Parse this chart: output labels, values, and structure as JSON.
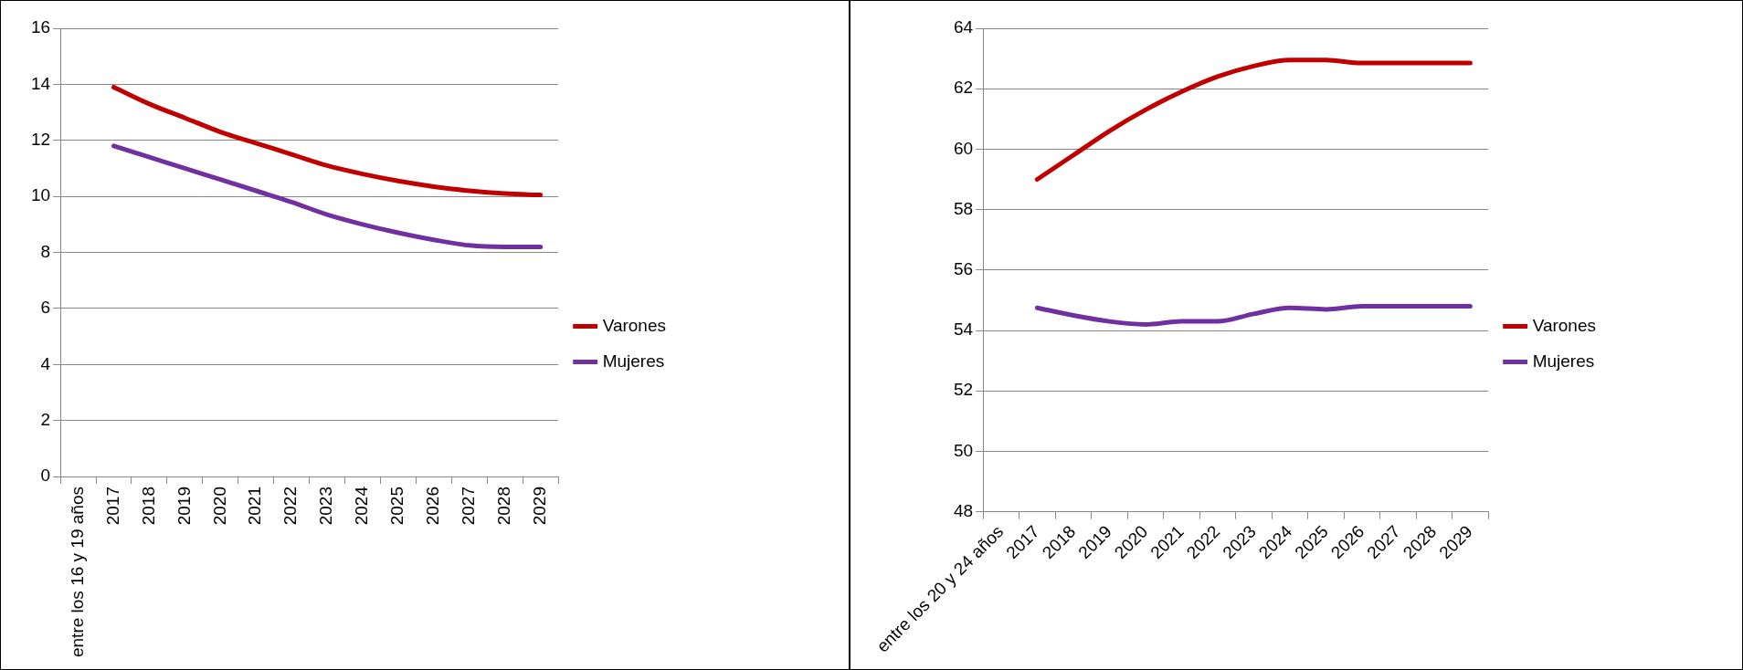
{
  "chart_data": [
    {
      "type": "line",
      "categories": [
        "entre los 16 y 19 años",
        "2017",
        "2018",
        "2019",
        "2020",
        "2021",
        "2022",
        "2023",
        "2024",
        "2025",
        "2026",
        "2027",
        "2028",
        "2029"
      ],
      "series": [
        {
          "name": "Varones",
          "color": "#c00000",
          "values": [
            null,
            13.9,
            13.3,
            12.8,
            12.3,
            11.9,
            11.5,
            11.1,
            10.8,
            10.55,
            10.35,
            10.2,
            10.1,
            10.05
          ]
        },
        {
          "name": "Mujeres",
          "color": "#7030a0",
          "values": [
            null,
            11.8,
            11.4,
            11.0,
            10.6,
            10.2,
            9.8,
            9.35,
            9.0,
            8.7,
            8.45,
            8.25,
            8.2,
            8.2
          ]
        }
      ],
      "ylim": [
        0,
        16
      ],
      "yticks": [
        0,
        2,
        4,
        6,
        8,
        10,
        12,
        14,
        16
      ],
      "grid": "y",
      "legend": "right"
    },
    {
      "type": "line",
      "categories": [
        "entre los 20 y 24 años",
        "2017",
        "2018",
        "2019",
        "2020",
        "2021",
        "2022",
        "2023",
        "2024",
        "2025",
        "2026",
        "2027",
        "2028",
        "2029"
      ],
      "series": [
        {
          "name": "Varones",
          "color": "#c00000",
          "values": [
            null,
            59.0,
            59.8,
            60.6,
            61.3,
            61.9,
            62.4,
            62.75,
            62.95,
            62.95,
            62.85,
            62.85,
            62.85,
            62.85
          ]
        },
        {
          "name": "Mujeres",
          "color": "#7030a0",
          "values": [
            null,
            54.75,
            54.5,
            54.3,
            54.2,
            54.3,
            54.3,
            54.55,
            54.75,
            54.7,
            54.8,
            54.8,
            54.8,
            54.8
          ]
        }
      ],
      "ylim": [
        48,
        64
      ],
      "yticks": [
        48,
        50,
        52,
        54,
        56,
        58,
        60,
        62,
        64
      ],
      "grid": "y",
      "legend": "right"
    }
  ]
}
